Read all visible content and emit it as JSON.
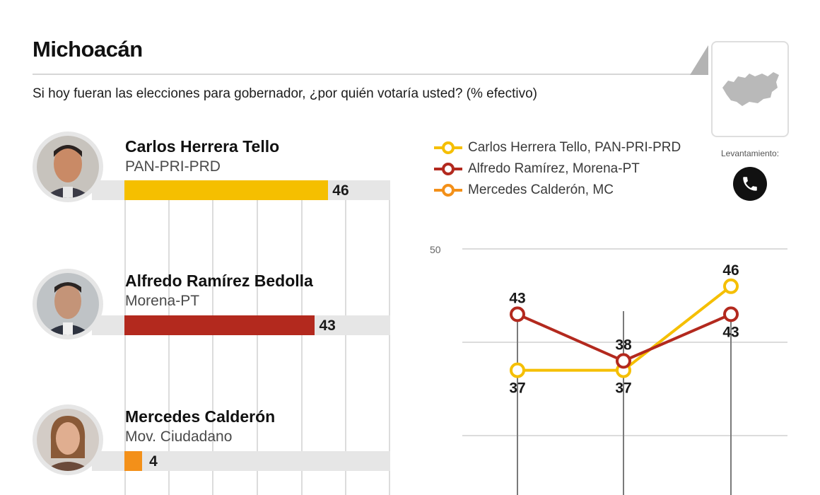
{
  "header": {
    "title": "Michoacán",
    "subtitle": "Si hoy fueran las elecciones para gobernador, ¿por quién votaría usted? (% efectivo)"
  },
  "candidates": [
    {
      "name": "Carlos Herrera Tello",
      "party": "PAN-PRI-PRD",
      "value": 46,
      "value_label": "46",
      "color": "#f5bf00"
    },
    {
      "name": "Alfredo Ramírez Bedolla",
      "party": "Morena-PT",
      "value": 43,
      "value_label": "43",
      "color": "#b3291e"
    },
    {
      "name": "Mercedes Calderón",
      "party": "Mov. Ciudadano",
      "value": 4,
      "value_label": "4",
      "color": "#f39019"
    }
  ],
  "legend": [
    {
      "label": "Carlos Herrera Tello, PAN-PRI-PRD",
      "color": "#f5bf00"
    },
    {
      "label": "Alfredo Ramírez, Morena-PT",
      "color": "#b3291e"
    },
    {
      "label": "Mercedes Calderón, MC",
      "color": "#f39019"
    }
  ],
  "survey": {
    "label": "Levantamiento:",
    "icon": "phone-icon"
  },
  "chart_data": [
    {
      "type": "bar",
      "orientation": "horizontal",
      "categories": [
        "Carlos Herrera Tello",
        "Alfredo Ramírez Bedolla",
        "Mercedes Calderón"
      ],
      "values": [
        46,
        43,
        4
      ],
      "xlim": [
        0,
        60
      ],
      "colors": [
        "#f5bf00",
        "#b3291e",
        "#f39019"
      ],
      "grid": true
    },
    {
      "type": "line",
      "x": [
        1,
        2,
        3
      ],
      "series": [
        {
          "name": "Carlos Herrera Tello, PAN-PRI-PRD",
          "values": [
            37,
            37,
            46
          ],
          "labels": [
            "37",
            "37",
            "46"
          ],
          "color": "#f5bf00"
        },
        {
          "name": "Alfredo Ramírez, Morena-PT",
          "values": [
            43,
            38,
            43
          ],
          "labels": [
            "43",
            "38",
            "43"
          ],
          "color": "#b3291e"
        }
      ],
      "y_ticks": [
        "50"
      ],
      "y_tick_values": [
        50
      ],
      "gridline_values": [
        50,
        40,
        30
      ],
      "ylim": [
        20,
        50
      ],
      "grid": true,
      "legend_position": "top"
    }
  ]
}
